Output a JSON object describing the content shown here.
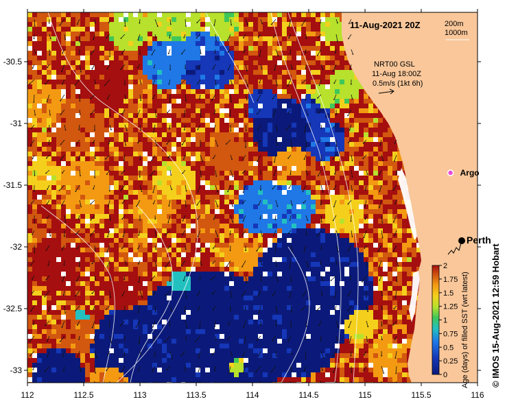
{
  "map": {
    "title": "11-Aug-2021 20Z",
    "bathymetry_legend": [
      "200m",
      "1000m"
    ],
    "current_info": [
      "NRT00 GSL",
      "11-Aug 18:00Z",
      "0.5m/s (1kt 6h)"
    ],
    "argo_label": "Argo",
    "city_label": "Perth",
    "credit": "© IMOS 15-Aug-2021 12:59 Hobart",
    "colorbar_title": "Age (days) of filled SST (wrt latest)",
    "colorbar_ticks": [
      "0",
      "0.25",
      "0.5",
      "0.75",
      "1",
      "1.25",
      "1.5",
      "1.75",
      "2"
    ],
    "colorbar_range": [
      0,
      2
    ],
    "x_ticks": [
      "112",
      "112.5",
      "113",
      "113.5",
      "114",
      "114.5",
      "115",
      "115.5",
      "116"
    ],
    "y_ticks": [
      "-30.5",
      "-31",
      "-31.5",
      "-32",
      "-32.5",
      "-33"
    ],
    "lon_range": [
      112,
      116
    ],
    "lat_range": [
      -33.1,
      -30.1
    ],
    "perth": {
      "lon": 115.86,
      "lat": -31.95
    },
    "argo": {
      "lon": 115.76,
      "lat": -31.4
    },
    "colors": {
      "land": "#f9c79a",
      "age_scale": [
        "#0b1a7a",
        "#1537b8",
        "#1f78e6",
        "#23c0c0",
        "#3fc75a",
        "#b7e12c",
        "#f4d01c",
        "#f39a12",
        "#d2570f",
        "#a50f0f"
      ],
      "contour": "#ffffff",
      "argo_marker": "#e84cd8"
    }
  }
}
